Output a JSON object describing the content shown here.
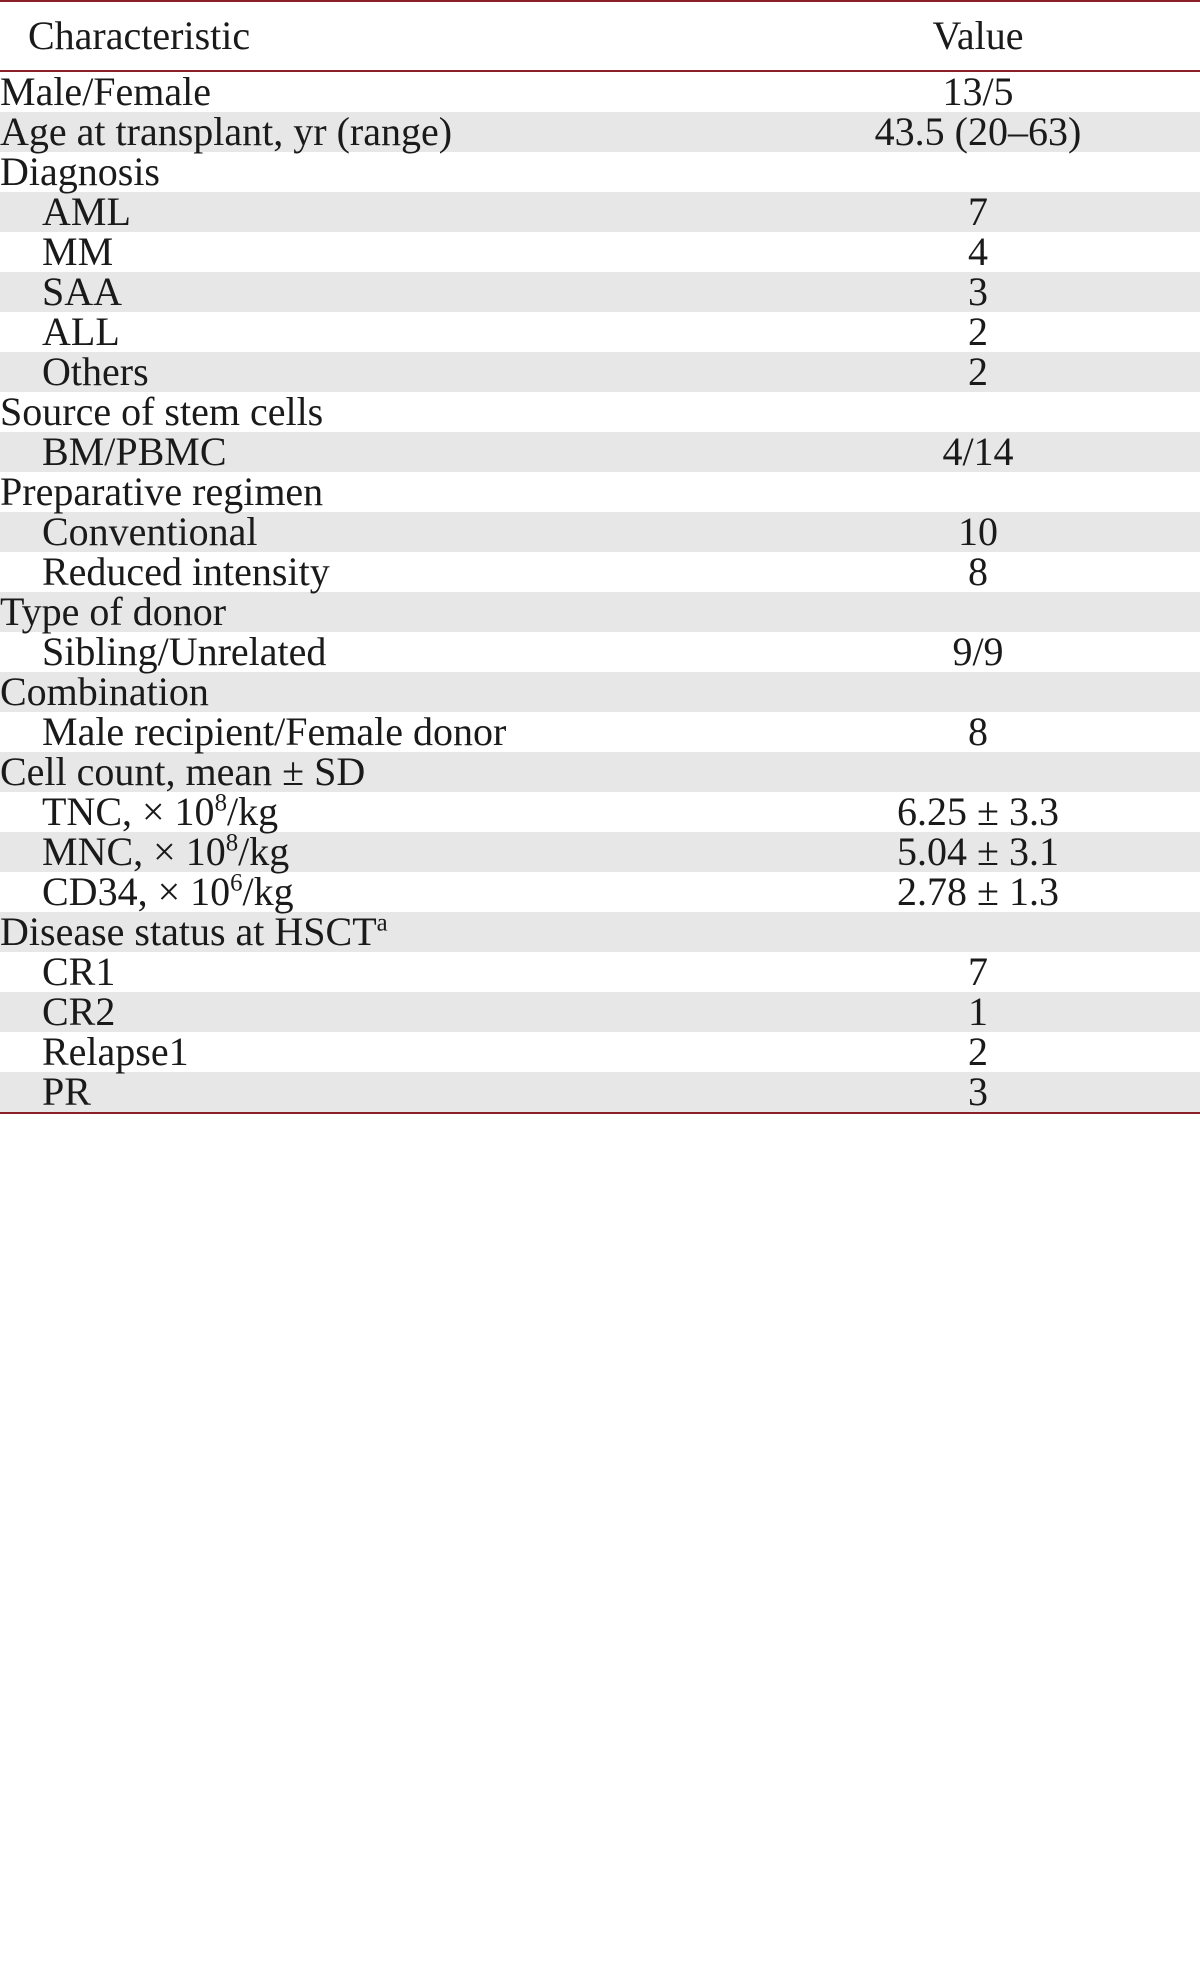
{
  "table": {
    "colors": {
      "rule": "#8a1f27",
      "shade": "#e7e7e7",
      "background": "#ffffff",
      "text": "#1a1a1a"
    },
    "fontsize_pt": 30,
    "header": {
      "characteristic": "Characteristic",
      "value": "Value"
    },
    "rows": [
      {
        "label": "Male/Female",
        "value": "13/5",
        "indent": false,
        "shade": false
      },
      {
        "label": "Age at transplant, yr (range)",
        "value": "43.5 (20–63)",
        "indent": false,
        "shade": true
      },
      {
        "label": "Diagnosis",
        "value": "",
        "indent": false,
        "shade": false
      },
      {
        "label": "AML",
        "value": "7",
        "indent": true,
        "shade": true
      },
      {
        "label": "MM",
        "value": "4",
        "indent": true,
        "shade": false
      },
      {
        "label": "SAA",
        "value": "3",
        "indent": true,
        "shade": true
      },
      {
        "label": "ALL",
        "value": "2",
        "indent": true,
        "shade": false
      },
      {
        "label": "Others",
        "value": "2",
        "indent": true,
        "shade": true
      },
      {
        "label": "Source of stem cells",
        "value": "",
        "indent": false,
        "shade": false
      },
      {
        "label": "BM/PBMC",
        "value": "4/14",
        "indent": true,
        "shade": true
      },
      {
        "label": "Preparative regimen",
        "value": "",
        "indent": false,
        "shade": false
      },
      {
        "label": "Conventional",
        "value": "10",
        "indent": true,
        "shade": true
      },
      {
        "label": "Reduced intensity",
        "value": "8",
        "indent": true,
        "shade": false
      },
      {
        "label": "Type of donor",
        "value": "",
        "indent": false,
        "shade": true
      },
      {
        "label": "Sibling/Unrelated",
        "value": "9/9",
        "indent": true,
        "shade": false
      },
      {
        "label": "Combination",
        "value": "",
        "indent": false,
        "shade": true
      },
      {
        "label": "Male recipient/Female donor",
        "value": "8",
        "indent": true,
        "shade": false
      },
      {
        "label": "Cell count, mean ± SD",
        "value": "",
        "indent": false,
        "shade": true
      },
      {
        "label_html": "TNC, × 10<sup class=\"exp\">8</sup>/kg",
        "value": "6.25 ± 3.3",
        "indent": true,
        "shade": false
      },
      {
        "label_html": "MNC, × 10<sup class=\"exp\">8</sup>/kg",
        "value": "5.04 ± 3.1",
        "indent": true,
        "shade": true
      },
      {
        "label_html": "CD34, × 10<sup class=\"exp\">6</sup>/kg",
        "value": "2.78 ± 1.3",
        "indent": true,
        "shade": false
      },
      {
        "label_html": "Disease status at HSCT<sup class=\"fn\">a</sup>",
        "value": "",
        "indent": false,
        "shade": true
      },
      {
        "label": "CR1",
        "value": "7",
        "indent": true,
        "shade": false
      },
      {
        "label": "CR2",
        "value": "1",
        "indent": true,
        "shade": true
      },
      {
        "label": "Relapse1",
        "value": "2",
        "indent": true,
        "shade": false
      },
      {
        "label": "PR",
        "value": "3",
        "indent": true,
        "shade": true
      }
    ]
  }
}
